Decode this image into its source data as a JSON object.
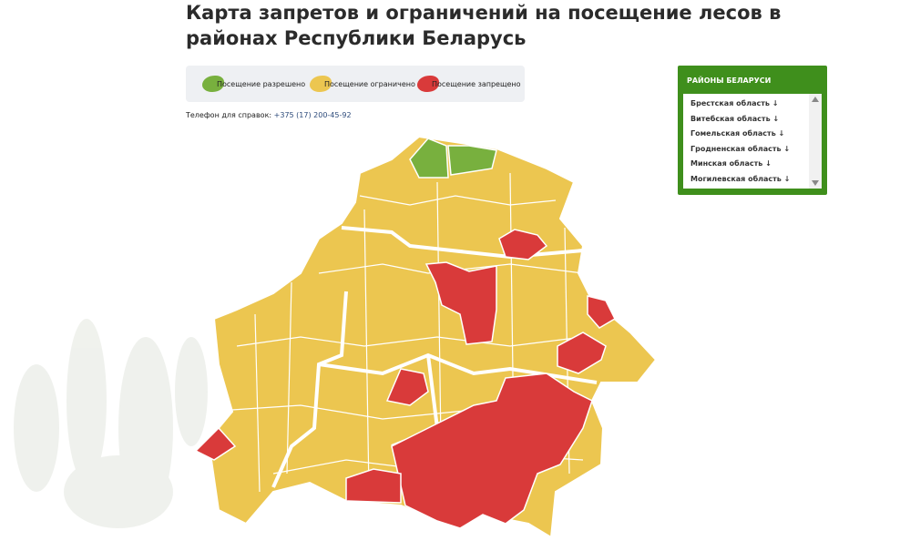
{
  "header": {
    "title": "Карта запретов и ограничений на посещение лесов в районах Республики Беларусь"
  },
  "legend": {
    "items": [
      "Посещение разрешено",
      "Посещение ограничено",
      "Посещение запрещено"
    ]
  },
  "contact": {
    "label": "Телефон для справок:",
    "phone": "+375 (17) 200-45-92"
  },
  "sidebar": {
    "title": "РАЙОНЫ БЕЛАРУСИ",
    "items": [
      "Брестская область",
      "Витебская область",
      "Гомельская область",
      "Гродненская область",
      "Минская область",
      "Могилевская область"
    ]
  }
}
